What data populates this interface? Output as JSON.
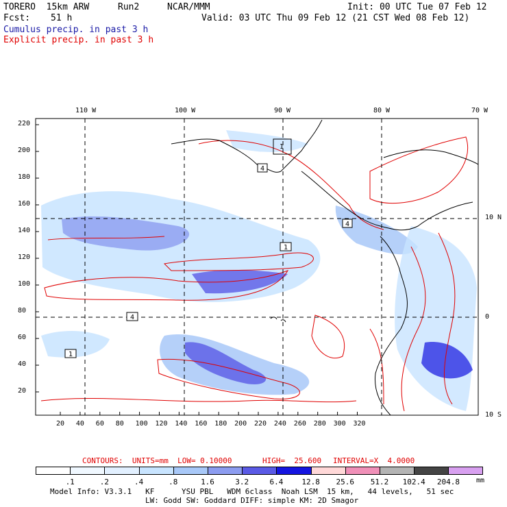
{
  "header": {
    "model": "TORERO  15km ARW",
    "run": "Run2",
    "org": "NCAR/MMM",
    "init": "Init: 00 UTC Tue 07 Feb 12",
    "fcst_label": "Fcst:",
    "fcst_value": "51 h",
    "valid": "Valid: 03 UTC Thu 09 Feb 12 (21 CST Wed 08 Feb 12)",
    "line1": "Cumulus precip. in past 3 h",
    "line2": "Explicit precip. in past 3 h"
  },
  "top_lon_labels": [
    "110 W",
    "100 W",
    "90 W",
    "80 W",
    "70 W"
  ],
  "right_lat_labels": [
    "10 N",
    "0",
    "10 S"
  ],
  "y_ticks": [
    "220",
    "200",
    "180",
    "160",
    "140",
    "120",
    "100",
    "80",
    "60",
    "40",
    "20"
  ],
  "x_ticks": [
    "20",
    "40",
    "60",
    "80",
    "100",
    "120",
    "140",
    "160",
    "180",
    "200",
    "220",
    "240",
    "260",
    "280",
    "300",
    "320"
  ],
  "station_marks": [
    "1",
    "4",
    "1",
    "4",
    "1",
    "4"
  ],
  "contour_info": {
    "contours": "CONTOURS:  UNITS=mm  LOW= 0.10000",
    "high": "HIGH=  25.600",
    "interval": "INTERVAL=X  4.0000"
  },
  "legend": {
    "unit": "mm",
    "labels": [
      ".1",
      ".2",
      ".4",
      ".8",
      "1.6",
      "3.2",
      "6.4",
      "12.8",
      "25.6",
      "51.2",
      "102.4",
      "204.8"
    ],
    "colors": [
      "#ffffff",
      "#f0f8ff",
      "#e2f0ff",
      "#c8e4ff",
      "#a8c8f8",
      "#8c9cf0",
      "#5a5ae6",
      "#1414e0",
      "#ffd8d8",
      "#f090b8",
      "#b4b4b4",
      "#444444",
      "#d8a0f0"
    ]
  },
  "footer": {
    "line1": "Model Info: V3.3.1   KF      YSU PBL   WDM 6class  Noah LSM  15 km,   44 levels,   51 sec",
    "line2": "LW: Godd SW: Goddard DIFF: simple KM: 2D Smagor"
  }
}
